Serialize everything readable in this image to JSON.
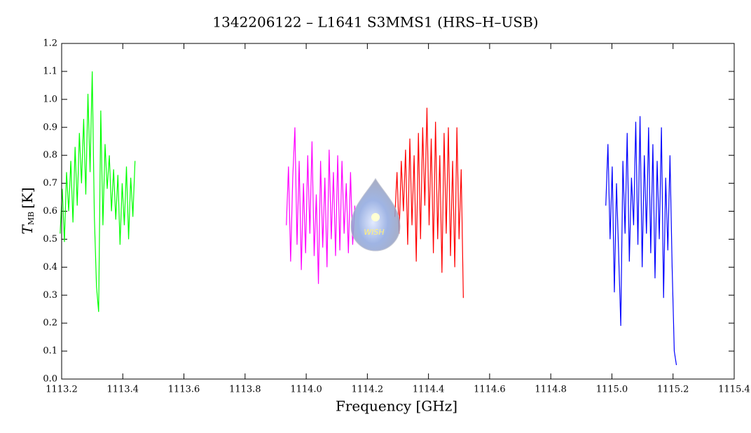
{
  "chart_data": {
    "type": "line",
    "title": "1342206122 – L1641 S3MMS1 (HRS–H–USB)",
    "xlabel": "Frequency [GHz]",
    "ylabel": {
      "symbol": "T",
      "subscript": "MB",
      "unit": "[K]"
    },
    "logo_text": "WISH",
    "xlim": [
      1113.2,
      1115.4
    ],
    "ylim": [
      0.0,
      1.2
    ],
    "xticks": [
      1113.2,
      1113.4,
      1113.6,
      1113.8,
      {
        "value": 1114.0,
        "label": "1114.0"
      },
      1114.2,
      1114.4,
      1114.6,
      1114.8,
      {
        "value": 1115.0,
        "label": "1115.0"
      },
      1115.2,
      1115.4
    ],
    "yticks": [
      {
        "value": 0.0,
        "label": "0.0"
      },
      0.1,
      0.2,
      0.3,
      0.4,
      0.5,
      0.6,
      0.7,
      0.8,
      0.9,
      {
        "value": 1.0,
        "label": "1.0"
      },
      1.1,
      1.2
    ],
    "series": [
      {
        "color": "#00ff00",
        "x": [
          1113.195,
          1113.202,
          1113.209,
          1113.216,
          1113.223,
          1113.23,
          1113.237,
          1113.244,
          1113.251,
          1113.258,
          1113.265,
          1113.272,
          1113.279,
          1113.286,
          1113.293,
          1113.3,
          1113.307,
          1113.314,
          1113.321,
          1113.328,
          1113.335,
          1113.342,
          1113.349,
          1113.356,
          1113.363,
          1113.37,
          1113.377,
          1113.384,
          1113.391,
          1113.398,
          1113.405,
          1113.412,
          1113.419,
          1113.426,
          1113.433,
          1113.44
        ],
        "values": [
          0.52,
          0.68,
          0.49,
          0.74,
          0.6,
          0.78,
          0.56,
          0.83,
          0.62,
          0.88,
          0.7,
          0.93,
          0.66,
          1.02,
          0.74,
          1.1,
          0.58,
          0.33,
          0.24,
          0.96,
          0.55,
          0.84,
          0.68,
          0.8,
          0.6,
          0.75,
          0.57,
          0.73,
          0.48,
          0.7,
          0.55,
          0.76,
          0.5,
          0.72,
          0.58,
          0.78
        ]
      },
      {
        "color": "#ff00ff",
        "x": [
          1113.935,
          1113.942,
          1113.949,
          1113.956,
          1113.963,
          1113.97,
          1113.977,
          1113.984,
          1113.991,
          1113.998,
          1114.005,
          1114.012,
          1114.019,
          1114.026,
          1114.033,
          1114.04,
          1114.047,
          1114.054,
          1114.061,
          1114.068,
          1114.075,
          1114.082,
          1114.089,
          1114.096,
          1114.103,
          1114.11,
          1114.117,
          1114.124,
          1114.131,
          1114.138,
          1114.145,
          1114.152,
          1114.159
        ],
        "values": [
          0.55,
          0.76,
          0.42,
          0.72,
          0.9,
          0.48,
          0.78,
          0.39,
          0.7,
          0.45,
          0.8,
          0.52,
          0.85,
          0.44,
          0.66,
          0.34,
          0.78,
          0.47,
          0.72,
          0.4,
          0.82,
          0.5,
          0.74,
          0.44,
          0.8,
          0.46,
          0.78,
          0.52,
          0.7,
          0.45,
          0.74,
          0.48,
          0.62
        ]
      },
      {
        "color": "#ff0000",
        "x": [
          1114.29,
          1114.297,
          1114.304,
          1114.311,
          1114.318,
          1114.325,
          1114.332,
          1114.339,
          1114.346,
          1114.353,
          1114.36,
          1114.367,
          1114.374,
          1114.381,
          1114.388,
          1114.395,
          1114.402,
          1114.409,
          1114.416,
          1114.423,
          1114.43,
          1114.437,
          1114.444,
          1114.451,
          1114.458,
          1114.465,
          1114.472,
          1114.479,
          1114.486,
          1114.493,
          1114.5,
          1114.507,
          1114.514
        ],
        "values": [
          0.58,
          0.74,
          0.52,
          0.78,
          0.6,
          0.82,
          0.48,
          0.86,
          0.55,
          0.8,
          0.42,
          0.88,
          0.5,
          0.9,
          0.62,
          0.97,
          0.55,
          0.86,
          0.45,
          0.92,
          0.5,
          0.8,
          0.38,
          0.88,
          0.52,
          0.9,
          0.44,
          0.78,
          0.4,
          0.9,
          0.5,
          0.75,
          0.29
        ]
      },
      {
        "color": "#0000ff",
        "x": [
          1114.98,
          1114.987,
          1114.994,
          1115.001,
          1115.008,
          1115.015,
          1115.022,
          1115.029,
          1115.036,
          1115.043,
          1115.05,
          1115.057,
          1115.064,
          1115.071,
          1115.078,
          1115.085,
          1115.092,
          1115.099,
          1115.106,
          1115.113,
          1115.12,
          1115.127,
          1115.134,
          1115.141,
          1115.148,
          1115.155,
          1115.162,
          1115.169,
          1115.176,
          1115.183,
          1115.19,
          1115.197,
          1115.204,
          1115.211
        ],
        "values": [
          0.62,
          0.84,
          0.5,
          0.76,
          0.31,
          0.7,
          0.45,
          0.19,
          0.78,
          0.52,
          0.88,
          0.42,
          0.72,
          0.55,
          0.92,
          0.48,
          0.94,
          0.4,
          0.8,
          0.52,
          0.9,
          0.45,
          0.84,
          0.36,
          0.78,
          0.5,
          0.9,
          0.29,
          0.72,
          0.46,
          0.8,
          0.4,
          0.1,
          0.05
        ]
      }
    ]
  }
}
